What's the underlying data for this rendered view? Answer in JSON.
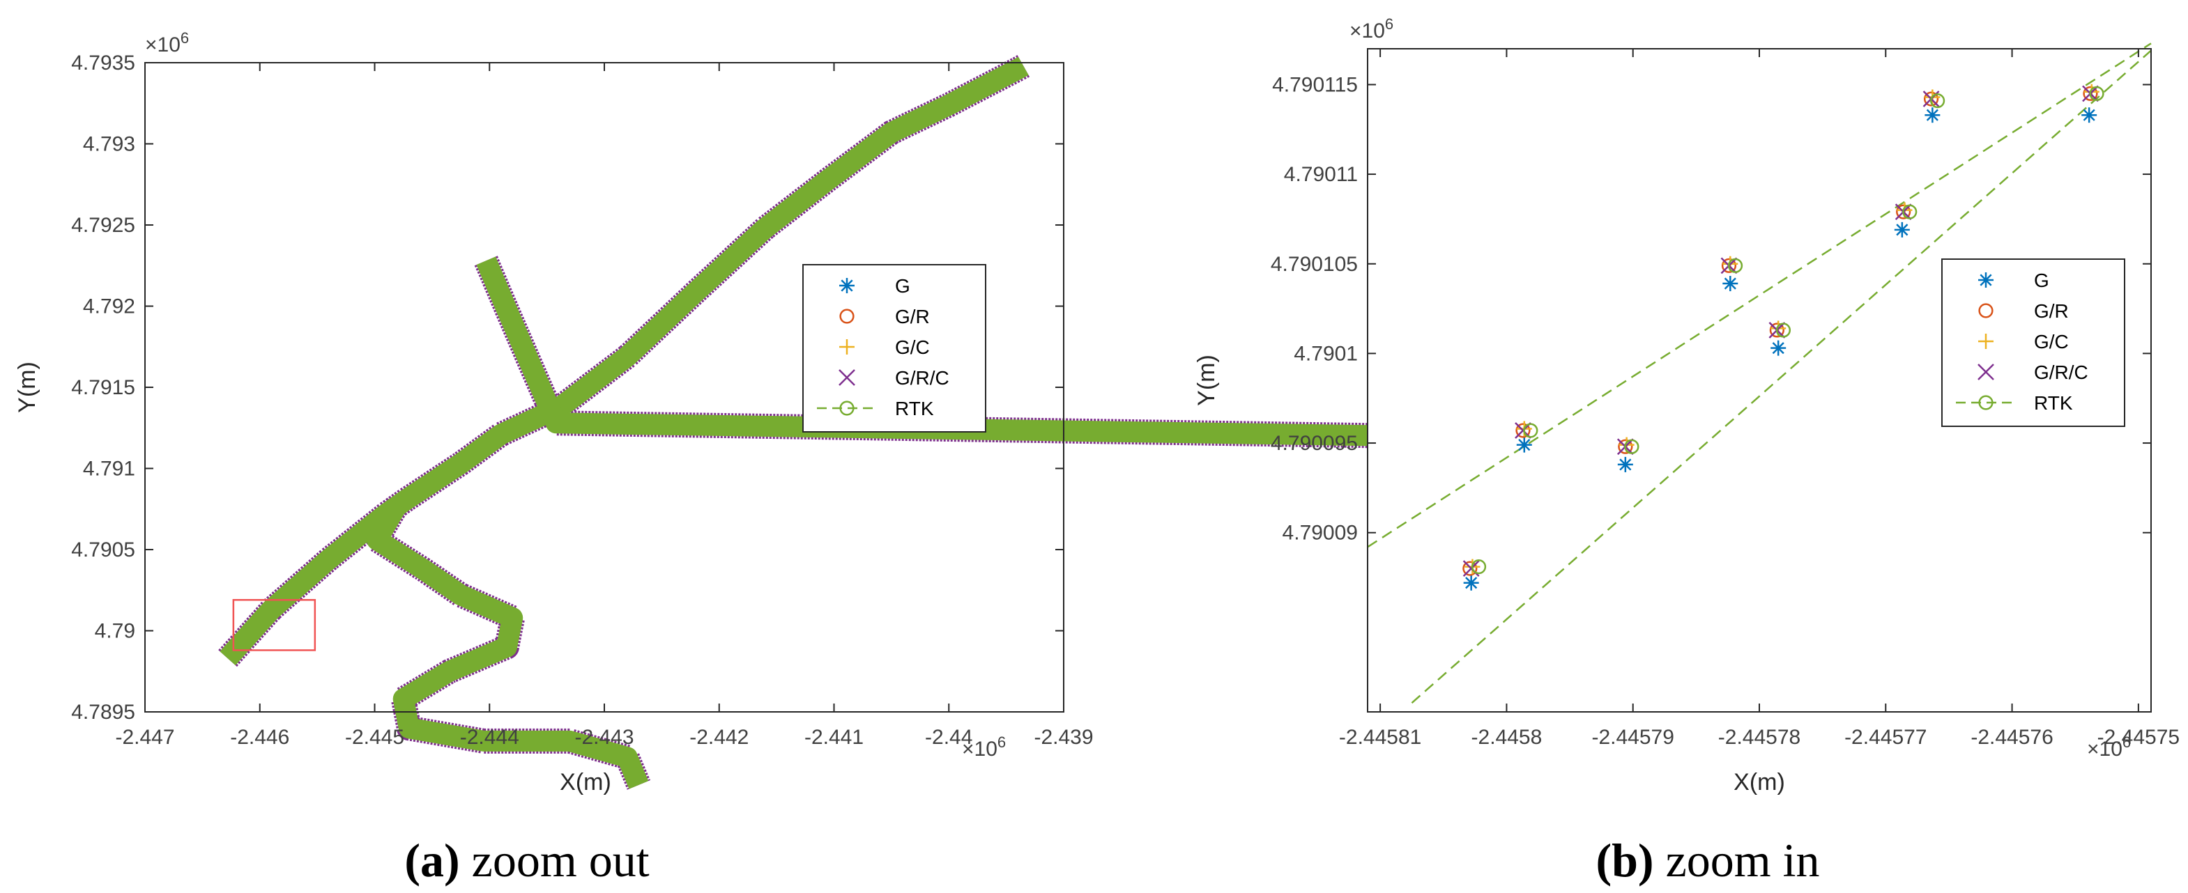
{
  "chart_data": [
    {
      "type": "line",
      "caption_letter": "(a)",
      "caption_text": " zoom out",
      "xlabel": "X(m)",
      "ylabel": "Y(m)",
      "x_exponent": "×10",
      "y_exponent": "×10",
      "exp_power": "6",
      "xlim": [
        -2.447,
        -2.439
      ],
      "ylim": [
        4.7895,
        4.7935
      ],
      "xticks": [
        -2.447,
        -2.446,
        -2.445,
        -2.444,
        -2.443,
        -2.442,
        -2.441,
        -2.44,
        -2.439
      ],
      "xtick_labels": [
        "-2.447",
        "-2.446",
        "-2.445",
        "-2.444",
        "-2.443",
        "-2.442",
        "-2.441",
        "-2.44",
        "-2.439"
      ],
      "yticks": [
        4.7895,
        4.79,
        4.7905,
        4.791,
        4.7915,
        4.792,
        4.7925,
        4.793,
        4.7935
      ],
      "ytick_labels": [
        "4.7895",
        "4.79",
        "4.7905",
        "4.791",
        "4.7915",
        "4.792",
        "4.7925",
        "4.793",
        "4.7935"
      ],
      "trajectory_segments": [
        {
          "name": "main-road",
          "points": [
            [
              -2.44628,
              4.78983
            ],
            [
              -2.4459,
              4.79013
            ],
            [
              -2.4454,
              4.79044
            ],
            [
              -2.4449,
              4.79072
            ],
            [
              -2.44472,
              4.79081
            ],
            [
              -2.44425,
              4.79103
            ],
            [
              -2.4439,
              4.79121
            ],
            [
              -2.44338,
              4.79138
            ],
            [
              -2.4428,
              4.79169
            ],
            [
              -2.4422,
              4.79209
            ],
            [
              -2.4416,
              4.79248
            ],
            [
              -2.44105,
              4.79278
            ],
            [
              -2.4405,
              4.79307
            ],
            [
              -2.44,
              4.79324
            ],
            [
              -2.4394,
              4.79346
            ],
            [
              -2.43935,
              4.79348
            ]
          ]
        },
        {
          "name": "north-branch",
          "points": [
            [
              -2.44403,
              4.79228
            ],
            [
              -2.44385,
              4.79198
            ],
            [
              -2.4436,
              4.79157
            ],
            [
              -2.44342,
              4.79128
            ],
            [
              -2.43332,
              4.79117
            ]
          ]
        },
        {
          "name": "south-branch",
          "points": [
            [
              -2.4448,
              4.79078
            ],
            [
              -2.44498,
              4.79056
            ],
            [
              -2.44458,
              4.79038
            ],
            [
              -2.44425,
              4.79022
            ],
            [
              -2.4438,
              4.79008
            ],
            [
              -2.44385,
              4.7899
            ],
            [
              -2.44435,
              4.78975
            ],
            [
              -2.44475,
              4.78958
            ],
            [
              -2.4447,
              4.7894
            ],
            [
              -2.44405,
              4.78932
            ],
            [
              -2.4433,
              4.78932
            ],
            [
              -2.4428,
              4.78922
            ],
            [
              -2.4427,
              4.78905
            ]
          ]
        }
      ],
      "zoom_box": {
        "x0": -2.44623,
        "x1": -2.44552,
        "y0": 4.78988,
        "y1": 4.79019
      },
      "legend": [
        {
          "label": "G",
          "marker": "asterisk",
          "color": "#0072BD"
        },
        {
          "label": "G/R",
          "marker": "circle",
          "color": "#D95319"
        },
        {
          "label": "G/C",
          "marker": "plus",
          "color": "#EDB120"
        },
        {
          "label": "G/R/C",
          "marker": "x",
          "color": "#7E2F8E"
        },
        {
          "label": "RTK",
          "marker": "dashed-circle",
          "color": "#77AC30"
        }
      ],
      "legend_position": "right"
    },
    {
      "type": "line",
      "caption_letter": "(b)",
      "caption_text": " zoom in",
      "xlabel": "X(m)",
      "ylabel": "Y(m)",
      "x_exponent": "×10",
      "y_exponent": "×10",
      "exp_power": "6",
      "xlim": [
        -2.445811,
        -2.445749
      ],
      "ylim": [
        4.79008,
        4.790117
      ],
      "xticks": [
        -2.44581,
        -2.4458,
        -2.44579,
        -2.44578,
        -2.44577,
        -2.44576,
        -2.44575
      ],
      "xtick_labels": [
        "-2.44581",
        "-2.4458",
        "-2.44579",
        "-2.44578",
        "-2.44577",
        "-2.44576",
        "-2.44575"
      ],
      "yticks": [
        4.79009,
        4.790095,
        4.7901,
        4.790105,
        4.79011,
        4.790115
      ],
      "ytick_labels": [
        "4.79009",
        "4.790095",
        "4.7901",
        "4.790105",
        "4.79011",
        "4.790115"
      ],
      "rtk_lines": [
        {
          "x": [
            -2.445811,
            -2.445749
          ],
          "y": [
            4.7900892,
            4.7901173
          ]
        },
        {
          "x": [
            -2.4458075,
            -2.445749
          ],
          "y": [
            4.7900805,
            4.7901169
          ]
        }
      ],
      "series": [
        {
          "name": "G",
          "x": [
            -2.4458028,
            -2.4457986,
            -2.4457906,
            -2.4457823,
            -2.4457785,
            -2.4457687,
            -2.4457663,
            -2.4457539
          ],
          "y": [
            4.7900872,
            4.7900949,
            4.7900938,
            4.7901039,
            4.7901003,
            4.7901069,
            4.7901133,
            4.7901133
          ]
        },
        {
          "name": "G/R",
          "x": [
            -2.4458029,
            -2.4457987,
            -2.4457906,
            -2.4457824,
            -2.4457786,
            -2.4457686,
            -2.4457664,
            -2.4457538
          ],
          "y": [
            4.790088,
            4.7900957,
            4.7900948,
            4.7901049,
            4.7901013,
            4.7901079,
            4.7901142,
            4.7901145
          ]
        },
        {
          "name": "G/C",
          "x": [
            -2.4458027,
            -2.4457986,
            -2.4457905,
            -2.4457823,
            -2.4457785,
            -2.4457685,
            -2.4457663,
            -2.4457537
          ],
          "y": [
            4.7900881,
            4.7900958,
            4.7900949,
            4.790105,
            4.7901014,
            4.790108,
            4.7901143,
            4.7901146
          ]
        },
        {
          "name": "G/R/C",
          "x": [
            -2.4458028,
            -2.4457987,
            -2.4457906,
            -2.4457824,
            -2.4457786,
            -2.4457686,
            -2.4457664,
            -2.4457538
          ],
          "y": [
            4.790088,
            4.7900957,
            4.7900948,
            4.7901049,
            4.7901013,
            4.7901079,
            4.7901142,
            4.7901145
          ]
        },
        {
          "name": "RTK",
          "x": [
            -2.4458022,
            -2.4457981,
            -2.4457901,
            -2.4457819,
            -2.4457781,
            -2.4457681,
            -2.4457659,
            -2.4457533
          ],
          "y": [
            4.7900881,
            4.7900957,
            4.7900948,
            4.7901049,
            4.7901013,
            4.7901079,
            4.7901141,
            4.7901145
          ]
        }
      ],
      "legend": [
        {
          "label": "G",
          "marker": "asterisk",
          "color": "#0072BD"
        },
        {
          "label": "G/R",
          "marker": "circle",
          "color": "#D95319"
        },
        {
          "label": "G/C",
          "marker": "plus",
          "color": "#EDB120"
        },
        {
          "label": "G/R/C",
          "marker": "x",
          "color": "#7E2F8E"
        },
        {
          "label": "RTK",
          "marker": "dashed-circle",
          "color": "#77AC30"
        }
      ],
      "legend_position": "right"
    }
  ]
}
